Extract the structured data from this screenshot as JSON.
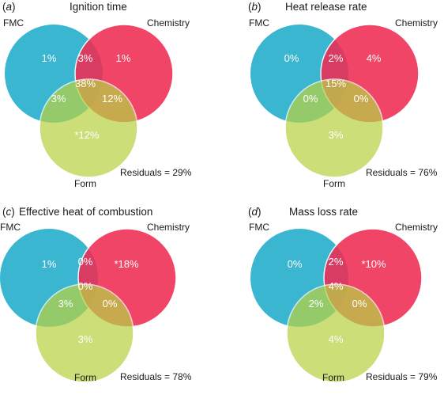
{
  "colors": {
    "fmc": "#2fb2cf",
    "chemistry": "#ee2c53",
    "form": "#b9d245"
  },
  "panels": [
    {
      "letter": "a",
      "title": "Ignition time",
      "labels": {
        "fmc": "FMC",
        "chemistry": "Chemistry",
        "form": "Form"
      },
      "values": {
        "fmc_only": "1%",
        "chem_only": "1%",
        "form_only": "*12%",
        "fmc_chem": "3%",
        "fmc_form": "3%",
        "chem_form": "12%",
        "all": "38%"
      },
      "residuals": "Residuals = 29%"
    },
    {
      "letter": "b",
      "title": "Heat release rate",
      "labels": {
        "fmc": "FMC",
        "chemistry": "Chemistry",
        "form": "Form"
      },
      "values": {
        "fmc_only": "0%",
        "chem_only": "4%",
        "form_only": "3%",
        "fmc_chem": "2%",
        "fmc_form": "0%",
        "chem_form": "0%",
        "all": "15%"
      },
      "residuals": "Residuals = 76%"
    },
    {
      "letter": "c",
      "title": "Effective heat of combustion",
      "labels": {
        "fmc": "FMC",
        "chemistry": "Chemistry",
        "form": "Form"
      },
      "values": {
        "fmc_only": "1%",
        "chem_only": "*18%",
        "form_only": "3%",
        "fmc_chem": "0%",
        "fmc_form": "3%",
        "chem_form": "0%",
        "all": "0%"
      },
      "residuals": "Residuals = 78%"
    },
    {
      "letter": "d",
      "title": "Mass loss rate",
      "labels": {
        "fmc": "FMC",
        "chemistry": "Chemistry",
        "form": "Form"
      },
      "values": {
        "fmc_only": "0%",
        "chem_only": "*10%",
        "form_only": "4%",
        "fmc_chem": "2%",
        "fmc_form": "2%",
        "chem_form": "0%",
        "all": "4%"
      },
      "residuals": "Residuals = 79%"
    }
  ]
}
